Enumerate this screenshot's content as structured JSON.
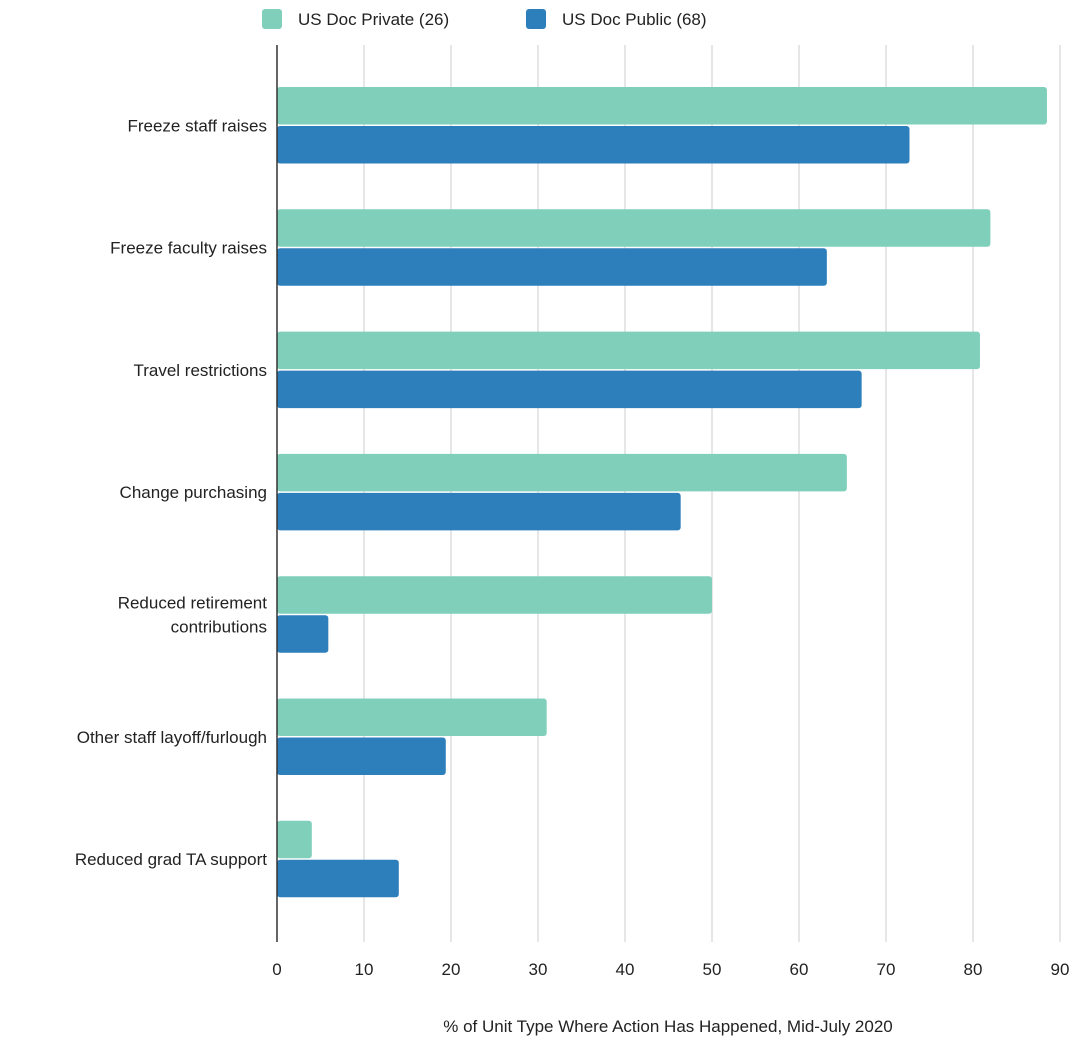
{
  "chart_data": {
    "type": "bar",
    "orientation": "horizontal",
    "title": "",
    "xlabel": "% of Unit Type Where Action Has Happened, Mid-July 2020",
    "ylabel": "",
    "xlim": [
      0,
      90
    ],
    "xticks": [
      "0",
      "10",
      "20",
      "30",
      "40",
      "50",
      "60",
      "70",
      "80",
      "90"
    ],
    "grid": true,
    "legend_position": "top",
    "categories": [
      [
        "Freeze staff raises"
      ],
      [
        "Freeze faculty raises"
      ],
      [
        "Travel restrictions"
      ],
      [
        "Change purchasing"
      ],
      [
        "Reduced retirement",
        "contributions"
      ],
      [
        "Other staff layoff/furlough"
      ],
      [
        "Reduced grad TA support"
      ]
    ],
    "series": [
      {
        "name": "US Doc Private (26)",
        "color": "#7fcfbb",
        "values": [
          88.5,
          82,
          80.8,
          65.5,
          50,
          31,
          4
        ]
      },
      {
        "name": "US Doc Public (68)",
        "color": "#2d7fbb",
        "values": [
          72.7,
          63.2,
          67.2,
          46.4,
          5.9,
          19.4,
          14
        ]
      }
    ]
  }
}
